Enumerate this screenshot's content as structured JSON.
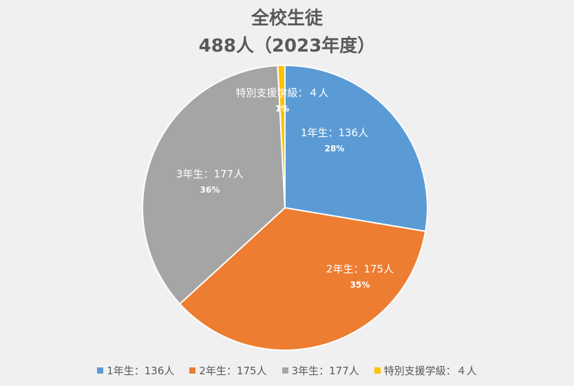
{
  "chart_data": {
    "type": "pie",
    "title": "全校生徒",
    "subtitle": "488人（2023年度）",
    "slices": [
      {
        "name": "1年生",
        "value": 136,
        "label": "1年生：136人",
        "percent": "28%",
        "color": "#5b9bd5"
      },
      {
        "name": "2年生",
        "value": 175,
        "label": "2年生：175人",
        "percent": "35%",
        "color": "#ed7d31"
      },
      {
        "name": "3年生",
        "value": 177,
        "label": "3年生：177人",
        "percent": "36%",
        "color": "#a5a5a5"
      },
      {
        "name": "特別支援学級",
        "value": 4,
        "label": "特別支援学級：４人",
        "percent": "1%",
        "color": "#ffc000"
      }
    ],
    "legend_position": "bottom"
  }
}
